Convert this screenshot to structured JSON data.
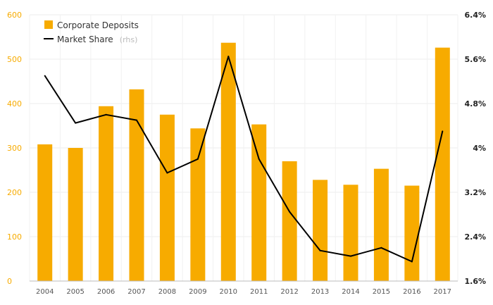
{
  "chart_data": {
    "type": "bar",
    "categories": [
      "2004",
      "2005",
      "2006",
      "2007",
      "2008",
      "2009",
      "2010",
      "2011",
      "2012",
      "2013",
      "2014",
      "2015",
      "2016",
      "2017"
    ],
    "series": [
      {
        "name": "Corporate Deposits",
        "type": "bar",
        "axis": "left",
        "color": "#F7AB00",
        "values": [
          308,
          300,
          394,
          432,
          375,
          344,
          537,
          353,
          270,
          228,
          217,
          253,
          215,
          526
        ]
      },
      {
        "name": "Market Share",
        "legend_suffix": "(rhs)",
        "type": "line",
        "axis": "right",
        "color": "#000000",
        "values": [
          5.3,
          4.45,
          4.6,
          4.5,
          3.55,
          3.8,
          5.65,
          3.8,
          2.85,
          2.15,
          2.05,
          2.2,
          1.95,
          4.3
        ]
      }
    ],
    "y_left": {
      "ylim": [
        0,
        600
      ],
      "ticks": [
        "0",
        "100",
        "200",
        "300",
        "400",
        "500",
        "600"
      ],
      "tick_color": "#F7AB00"
    },
    "y_right": {
      "ylim": [
        1.6,
        6.4
      ],
      "ticks": [
        "1.6%",
        "2.4%",
        "3.2%",
        "4%",
        "4.8%",
        "5.6%",
        "6.4%"
      ]
    },
    "grid": true,
    "legend_position": "top-left"
  }
}
